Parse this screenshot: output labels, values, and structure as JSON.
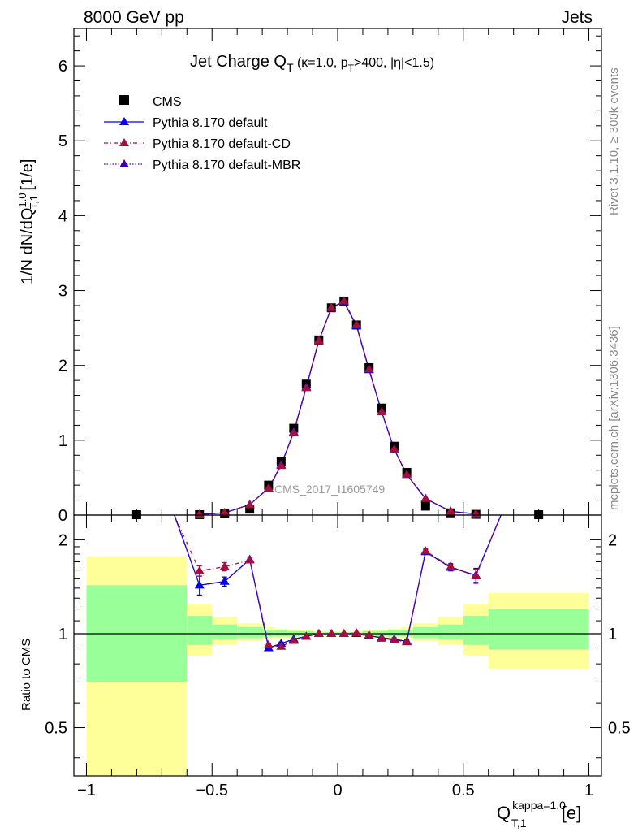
{
  "header": {
    "left": "8000 GeV pp",
    "right": "Jets"
  },
  "side_labels": {
    "rivet": "Rivet 3.1.10, ≥ 300k events",
    "mcplots": "mcplots.cern.ch [arXiv:1306.3436]"
  },
  "colors": {
    "cms": "#000000",
    "default": "#0000ee",
    "cd": "#a50f3c",
    "mbr": "#3c00b4",
    "band_inner": "#99ff99",
    "band_outer": "#ffff99"
  },
  "chart_data": [
    {
      "type": "line",
      "title_main": "Jet Charge Q",
      "title_sub": "T",
      "title_rest": " (κ=1.0, p",
      "title_sub2": "T",
      "title_tail": ">400, |η|<1.5)",
      "ylabel": "1/N dN/dQ",
      "ylabel_sup": "1.0",
      "ylabel_sub": "T,1",
      "ylabel_unit": " [1/e]",
      "xlim": [
        -1.05,
        1.05
      ],
      "ylim": [
        0,
        6.5
      ],
      "yticks": [
        0,
        1,
        2,
        3,
        4,
        5,
        6
      ],
      "watermark": "CMS_2017_I1605749",
      "legend_position": "top-left",
      "legend": [
        "CMS",
        "Pythia 8.170 default",
        "Pythia 8.170 default-CD",
        "Pythia 8.170 default-MBR"
      ],
      "cms": {
        "x": [
          -0.8,
          -0.55,
          -0.45,
          -0.35,
          -0.275,
          -0.225,
          -0.175,
          -0.125,
          -0.075,
          -0.025,
          0.025,
          0.075,
          0.125,
          0.175,
          0.225,
          0.275,
          0.35,
          0.45,
          0.55,
          0.8
        ],
        "y": [
          0.005,
          0.006,
          0.02,
          0.08,
          0.4,
          0.72,
          1.16,
          1.75,
          2.34,
          2.77,
          2.86,
          2.54,
          1.97,
          1.43,
          0.92,
          0.57,
          0.12,
          0.03,
          0.01,
          0.005
        ]
      },
      "series": [
        {
          "name": "Pythia 8.170 default",
          "x": [
            -0.55,
            -0.45,
            -0.35,
            -0.275,
            -0.225,
            -0.175,
            -0.125,
            -0.075,
            -0.025,
            0.025,
            0.075,
            0.125,
            0.175,
            0.225,
            0.275,
            0.35,
            0.45,
            0.55
          ],
          "y": [
            0.009,
            0.03,
            0.14,
            0.36,
            0.67,
            1.11,
            1.71,
            2.33,
            2.77,
            2.85,
            2.53,
            1.94,
            1.38,
            0.88,
            0.54,
            0.22,
            0.05,
            0.015
          ]
        },
        {
          "name": "Pythia 8.170 default-CD",
          "x": [
            -0.55,
            -0.45,
            -0.35,
            -0.275,
            -0.225,
            -0.175,
            -0.125,
            -0.075,
            -0.025,
            0.025,
            0.075,
            0.125,
            0.175,
            0.225,
            0.275,
            0.35,
            0.45,
            0.55
          ],
          "y": [
            0.01,
            0.033,
            0.14,
            0.36,
            0.66,
            1.1,
            1.7,
            2.33,
            2.77,
            2.86,
            2.54,
            1.95,
            1.38,
            0.88,
            0.54,
            0.22,
            0.05,
            0.015
          ]
        },
        {
          "name": "Pythia 8.170 default-MBR",
          "x": [
            -0.55,
            -0.45,
            -0.35,
            -0.275,
            -0.225,
            -0.175,
            -0.125,
            -0.075,
            -0.025,
            0.025,
            0.075,
            0.125,
            0.175,
            0.225,
            0.275,
            0.35,
            0.45,
            0.55
          ],
          "y": [
            0.009,
            0.03,
            0.14,
            0.36,
            0.67,
            1.11,
            1.71,
            2.33,
            2.77,
            2.85,
            2.53,
            1.94,
            1.38,
            0.88,
            0.54,
            0.22,
            0.05,
            0.015
          ]
        }
      ]
    },
    {
      "type": "line",
      "ylabel": "Ratio to CMS",
      "xlabel": "Q",
      "xlabel_sup": "kappa=1.0",
      "xlabel_sub": "T,1",
      "xlabel_unit": " [e]",
      "ylog": true,
      "ylim": [
        0.35,
        2.4
      ],
      "xlim": [
        -1.05,
        1.05
      ],
      "yticks": [
        0.5,
        1,
        2
      ],
      "xticks": [
        -1,
        -0.5,
        0,
        0.5,
        1
      ],
      "xtick_labels": [
        "−1",
        "−0.5",
        "0",
        "0.5",
        "1"
      ],
      "bands": {
        "edges": [
          -1,
          -0.6,
          -0.5,
          -0.4,
          -0.3,
          -0.25,
          -0.2,
          -0.15,
          -0.1,
          -0.05,
          0,
          0.05,
          0.1,
          0.15,
          0.2,
          0.25,
          0.3,
          0.4,
          0.5,
          0.6,
          1
        ],
        "inner_lo": [
          0.7,
          0.92,
          0.96,
          0.97,
          0.98,
          0.98,
          0.98,
          0.985,
          0.99,
          0.99,
          0.99,
          0.99,
          0.985,
          0.98,
          0.98,
          0.98,
          0.97,
          0.96,
          0.92,
          0.89
        ],
        "inner_hi": [
          1.43,
          1.14,
          1.07,
          1.05,
          1.03,
          1.03,
          1.02,
          1.02,
          1.01,
          1.01,
          1.01,
          1.01,
          1.02,
          1.02,
          1.03,
          1.03,
          1.05,
          1.07,
          1.14,
          1.2
        ],
        "outer_lo": [
          0.35,
          0.85,
          0.92,
          0.95,
          0.97,
          0.97,
          0.97,
          0.98,
          0.985,
          0.985,
          0.985,
          0.985,
          0.98,
          0.97,
          0.97,
          0.97,
          0.95,
          0.92,
          0.85,
          0.77
        ],
        "outer_hi": [
          1.77,
          1.24,
          1.13,
          1.08,
          1.05,
          1.04,
          1.03,
          1.03,
          1.02,
          1.02,
          1.02,
          1.02,
          1.03,
          1.03,
          1.04,
          1.05,
          1.08,
          1.13,
          1.24,
          1.35
        ]
      },
      "series": [
        {
          "name": "Pythia 8.170 default",
          "x": [
            -0.65,
            -0.55,
            -0.45,
            -0.35,
            -0.275,
            -0.225,
            -0.175,
            -0.125,
            -0.075,
            -0.025,
            0.025,
            0.075,
            0.125,
            0.175,
            0.225,
            0.275,
            0.35,
            0.45,
            0.55,
            0.65
          ],
          "y": [
            2.4,
            1.43,
            1.47,
            1.73,
            0.9,
            0.93,
            0.96,
            0.98,
            1.0,
            1.0,
            1.0,
            1.0,
            0.985,
            0.97,
            0.96,
            0.945,
            1.83,
            1.63,
            1.54,
            2.4
          ],
          "err": [
            0,
            0.1,
            0.05,
            0.03,
            0.01,
            0.01,
            0.005,
            0.005,
            0.003,
            0.003,
            0.003,
            0.003,
            0.005,
            0.005,
            0.01,
            0.01,
            0.03,
            0.04,
            0.08,
            0
          ]
        },
        {
          "name": "Pythia 8.170 default-CD",
          "x": [
            -0.65,
            -0.55,
            -0.45,
            -0.35,
            -0.275,
            -0.225,
            -0.175,
            -0.125,
            -0.075,
            -0.025,
            0.025,
            0.075,
            0.125,
            0.175,
            0.225,
            0.275,
            0.35,
            0.45,
            0.55,
            0.65
          ],
          "y": [
            2.4,
            1.59,
            1.64,
            1.72,
            0.92,
            0.91,
            0.95,
            0.98,
            1.0,
            1.0,
            1.0,
            1.005,
            0.99,
            0.965,
            0.955,
            0.94,
            1.84,
            1.64,
            1.53,
            2.4
          ],
          "err": [
            0,
            0.06,
            0.05,
            0.03,
            0.01,
            0.01,
            0.005,
            0.005,
            0.003,
            0.003,
            0.003,
            0.003,
            0.005,
            0.005,
            0.01,
            0.01,
            0.03,
            0.04,
            0.08,
            0
          ]
        },
        {
          "name": "Pythia 8.170 default-MBR",
          "x": [
            -0.65,
            -0.55,
            -0.45,
            -0.35,
            -0.275,
            -0.225,
            -0.175,
            -0.125,
            -0.075,
            -0.025,
            0.025,
            0.075,
            0.125,
            0.175,
            0.225,
            0.275,
            0.35,
            0.45,
            0.55,
            0.65
          ],
          "y": [
            2.4,
            1.43,
            1.47,
            1.73,
            0.9,
            0.93,
            0.96,
            0.98,
            1.0,
            1.0,
            1.0,
            1.0,
            0.985,
            0.97,
            0.96,
            0.945,
            1.83,
            1.63,
            1.54,
            2.4
          ],
          "err": [
            0,
            0,
            0,
            0,
            0,
            0,
            0,
            0,
            0,
            0,
            0,
            0,
            0,
            0,
            0,
            0,
            0,
            0,
            0,
            0
          ]
        }
      ]
    }
  ]
}
